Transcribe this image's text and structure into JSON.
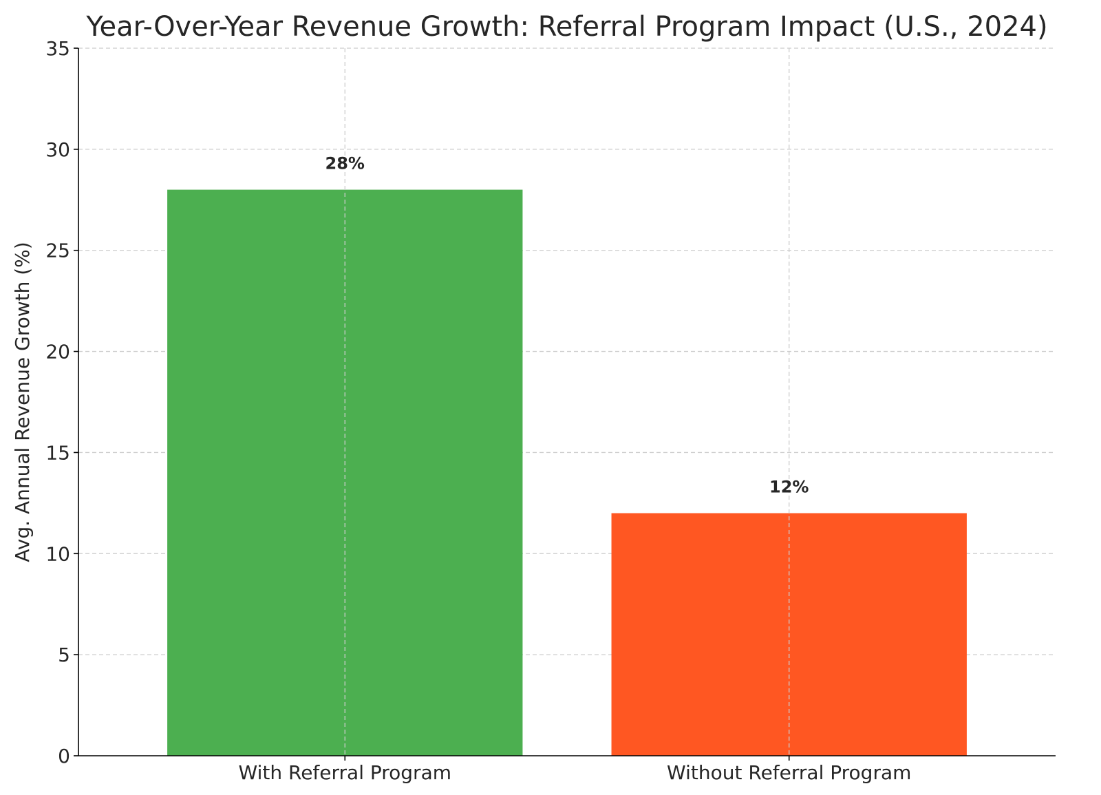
{
  "chart_data": {
    "type": "bar",
    "title": "Year-Over-Year Revenue Growth: Referral Program Impact (U.S., 2024)",
    "xlabel": "",
    "ylabel": "Avg. Annual Revenue Growth (%)",
    "categories": [
      "With Referral Program",
      "Without Referral Program"
    ],
    "values": [
      28,
      12
    ],
    "data_labels": [
      "28%",
      "12%"
    ],
    "colors": [
      "#4caf50",
      "#ff5722"
    ],
    "ylim": [
      0,
      35
    ],
    "yticks": [
      0,
      5,
      10,
      15,
      20,
      25,
      30,
      35
    ],
    "ytick_labels": [
      "0",
      "5",
      "10",
      "15",
      "20",
      "25",
      "30",
      "35"
    ],
    "grid": true,
    "legend": "none"
  }
}
